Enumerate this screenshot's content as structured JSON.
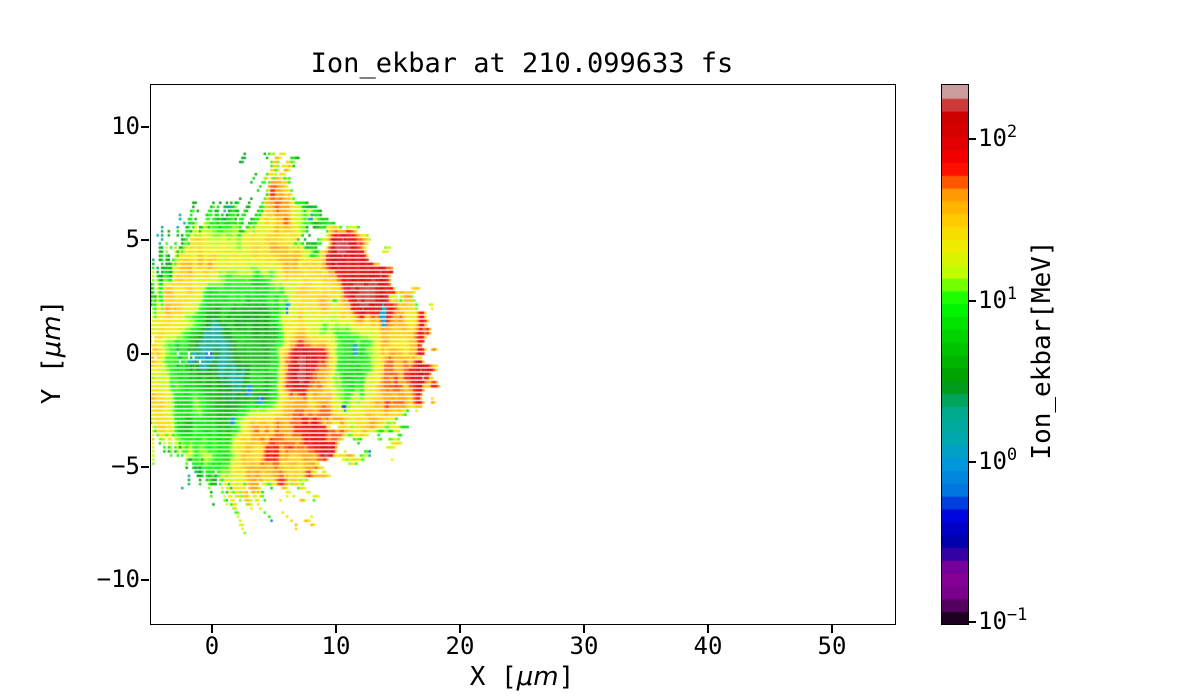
{
  "title": "Ion_ekbar at 210.099633 fs",
  "axes": {
    "xlabel": {
      "prefix": "X [",
      "unit": "μm",
      "suffix": "]"
    },
    "ylabel": {
      "prefix": "Y [",
      "unit": "μm",
      "suffix": "]"
    },
    "x_ticks": [
      {
        "value": 0,
        "label": "0"
      },
      {
        "value": 10,
        "label": "10"
      },
      {
        "value": 20,
        "label": "20"
      },
      {
        "value": 30,
        "label": "30"
      },
      {
        "value": 40,
        "label": "40"
      },
      {
        "value": 50,
        "label": "50"
      }
    ],
    "y_ticks": [
      {
        "value": 10,
        "label": "10"
      },
      {
        "value": 5,
        "label": "5"
      },
      {
        "value": 0,
        "label": "0"
      },
      {
        "value": -5,
        "label": "−5"
      },
      {
        "value": -10,
        "label": "−10"
      }
    ]
  },
  "colorbar": {
    "label": "Ion_ekbar[MeV]",
    "scale": "log10",
    "vmin": 0.1,
    "vmax": 215.8,
    "n_segments": 42,
    "ticks": [
      {
        "value": 100,
        "base": "10",
        "exp": "2"
      },
      {
        "value": 10,
        "base": "10",
        "exp": "1"
      },
      {
        "value": 1,
        "base": "10",
        "exp": "0"
      },
      {
        "value": 0.1,
        "base": "10",
        "exp": "−1"
      }
    ],
    "colormap": {
      "name": "nipy_spectral",
      "stops": [
        [
          0.0,
          "#000000"
        ],
        [
          0.05,
          "#770088"
        ],
        [
          0.1,
          "#880099"
        ],
        [
          0.15,
          "#0000AA"
        ],
        [
          0.2,
          "#0000DD"
        ],
        [
          0.25,
          "#0077DD"
        ],
        [
          0.3,
          "#0099DD"
        ],
        [
          0.35,
          "#00AAAA"
        ],
        [
          0.4,
          "#00AA88"
        ],
        [
          0.45,
          "#009900"
        ],
        [
          0.5,
          "#00BB00"
        ],
        [
          0.55,
          "#00DD00"
        ],
        [
          0.6,
          "#00FF00"
        ],
        [
          0.65,
          "#BBFF00"
        ],
        [
          0.7,
          "#EEEE00"
        ],
        [
          0.75,
          "#FFCC00"
        ],
        [
          0.8,
          "#FF9900"
        ],
        [
          0.85,
          "#FF0000"
        ],
        [
          0.9,
          "#DD0000"
        ],
        [
          0.95,
          "#CC0000"
        ],
        [
          1.0,
          "#CCCCCC"
        ]
      ]
    }
  },
  "chart_data": {
    "type": "heatmap",
    "title": "Ion_ekbar at 210.099633 fs",
    "time_fs": 210.099633,
    "xlabel": "X [μm]",
    "ylabel": "Y [μm]",
    "value_label": "Ion_ekbar[MeV]",
    "x_range": [
      -5,
      55
    ],
    "y_range": [
      -11.9,
      11.9
    ],
    "color_scale": {
      "type": "log",
      "min": 0.1,
      "max": 215.8
    },
    "grid": {
      "x_start": -5,
      "x_step": 1,
      "y_start": 8,
      "y_step": -1,
      "ncols": 26,
      "nrows": 19,
      "level_chars": "0123456789ABCDEF",
      "level_log10_mev": [
        -0.85,
        -0.4,
        -0.1,
        0.12,
        0.28,
        0.5,
        0.62,
        0.85,
        1.0,
        1.15,
        1.3,
        1.45,
        1.6,
        1.75,
        1.95,
        2.1
      ],
      "values": [
        "7777788889BB988AAAAAAAAAAA",
        "777778888ACCA889AAAAAAAAAA",
        "777788899ABBA889AAAAAAAAAA",
        "778AAAAAA9BBA99EEDAEEEEAAA",
        "78ABBAAAAABBBABFFFEEEEEAAA",
        "8AAA98777789AA9AFFFFEEEAAA",
        "AAA977666679AABABEFEBAEEAA",
        "AA9754577669BA9889BBBBEEAA",
        "BA873555667CFFEA88ACCCFEAA",
        "BA876556667CFFDA89BCCCFFEA",
        "BA877655668BDDCA99BBBBFEAA",
        "BB977778BCCCCDDCBBBBBBEEAA",
        "BA98778ACCCCCDECCBBEEEEAAA",
        "A977778BCCCBBCEDCCCDEEEAAA",
        "7778889ABBCCCCDDEDDEEEAAAA",
        "7777889AABCCDDDEEEDDAAAAAA",
        "777889ACCDDEEEEDDAAAAAAAAA",
        "7788899AABCCDDEEEDAAAAAAAA",
        "AAAAAAAAAAAAAAAAAAAAAAAAAA"
      ],
      "coverage": [
        "00111111225410000000000000",
        "00122222238722110000000000",
        "01233544458874321000000000",
        "12356777657753378512211000",
        "23578888878875589842211000",
        "35788888888887569997221000",
        "46888889999998768986553100",
        "47887789999999888889984100",
        "56544578999999999999984200",
        "57766678999999999999985310",
        "57777788999999999999984200",
        "46788899999986435776310000",
        "23467889999988843222221000",
        "22235678888765433322211000",
        "12222345543332222111110000",
        "01111222222222111110000000",
        "00111111111222111000000000",
        "00000000000000111100000000",
        "00000000000000000000000000"
      ]
    },
    "spots": [
      {
        "x": 13.75,
        "y": 1.7,
        "rx": 0.22,
        "ry": 0.55,
        "log10_mev": 0.1,
        "note": "navy sliver at block top-left"
      }
    ]
  }
}
